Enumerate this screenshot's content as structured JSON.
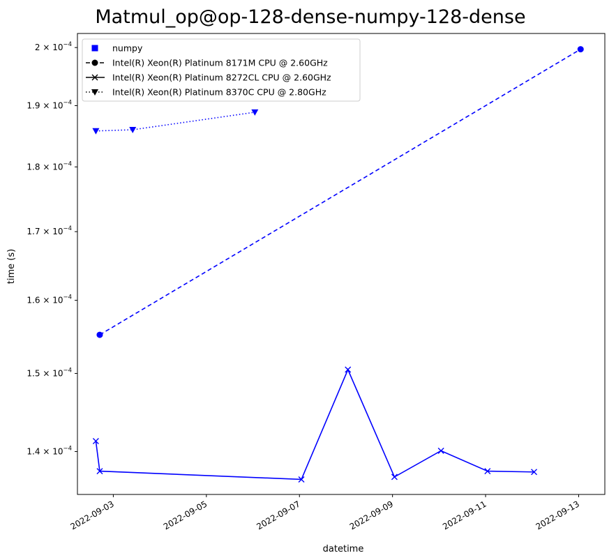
{
  "chart_data": {
    "type": "line",
    "title": "Matmul_op@op-128-dense-numpy-128-dense",
    "xlabel": "datetime",
    "ylabel": "time (s)",
    "y_scale": "log",
    "x_tick_labels": [
      "2022-09-03",
      "2022-09-05",
      "2022-09-07",
      "2022-09-09",
      "2022-09-11",
      "2022-09-13"
    ],
    "x_ticks": [
      "2022-09-03",
      "2022-09-05",
      "2022-09-07",
      "2022-09-09",
      "2022-09-11",
      "2022-09-13"
    ],
    "y_tick_mantissas": [
      "1.4",
      "1.5",
      "1.6",
      "1.7",
      "1.8",
      "1.9",
      "2"
    ],
    "y_tick_prefix": "×",
    "y_tick_base": "10",
    "y_tick_exponent": "−4",
    "y_ticks": [
      0.00014,
      0.00015,
      0.00016,
      0.00017,
      0.00018,
      0.00019,
      0.0002
    ],
    "xlim": [
      "2022-09-02 05:30",
      "2022-09-13 13:30"
    ],
    "ylim": [
      0.0001348,
      0.0002025
    ],
    "grid": false,
    "legend_position": "top-left",
    "color": "#0000ff",
    "legend": [
      {
        "label": "numpy",
        "marker": "square",
        "line": "none",
        "color": "#0000ff"
      },
      {
        "label": "Intel(R) Xeon(R) Platinum 8171M CPU @ 2.60GHz",
        "marker": "circle",
        "line": "dashed",
        "color": "#000000"
      },
      {
        "label": "Intel(R) Xeon(R) Platinum 8272CL CPU @ 2.60GHz",
        "marker": "x",
        "line": "solid",
        "color": "#000000"
      },
      {
        "label": "Intel(R) Xeon(R) Platinum 8370C CPU @ 2.80GHz",
        "marker": "triangle-down",
        "line": "dotted",
        "color": "#000000"
      }
    ],
    "series": [
      {
        "machine": "Intel(R) Xeon(R) Platinum 8171M CPU @ 2.60GHz",
        "line": "dashed",
        "marker": "circle",
        "points": [
          {
            "x": "2022-09-02 17:00",
            "y": 0.0001552
          },
          {
            "x": "2022-09-13 01:00",
            "y": 0.0001997
          }
        ]
      },
      {
        "machine": "Intel(R) Xeon(R) Platinum 8272CL CPU @ 2.60GHz",
        "line": "solid",
        "marker": "x",
        "points": [
          {
            "x": "2022-09-02 15:00",
            "y": 0.0001413
          },
          {
            "x": "2022-09-02 17:00",
            "y": 0.0001376
          },
          {
            "x": "2022-09-07 01:00",
            "y": 0.0001366
          },
          {
            "x": "2022-09-08 01:00",
            "y": 0.0001505
          },
          {
            "x": "2022-09-09 01:00",
            "y": 0.0001369
          },
          {
            "x": "2022-09-10 01:00",
            "y": 0.0001401
          },
          {
            "x": "2022-09-11 01:00",
            "y": 0.0001376
          },
          {
            "x": "2022-09-12 01:00",
            "y": 0.0001375
          }
        ]
      },
      {
        "machine": "Intel(R) Xeon(R) Platinum 8370C CPU @ 2.80GHz",
        "line": "dotted",
        "marker": "triangle-down",
        "points": [
          {
            "x": "2022-09-02 15:00",
            "y": 0.0001858
          },
          {
            "x": "2022-09-03 10:00",
            "y": 0.000186
          },
          {
            "x": "2022-09-06 01:00",
            "y": 0.0001889
          }
        ]
      }
    ]
  }
}
